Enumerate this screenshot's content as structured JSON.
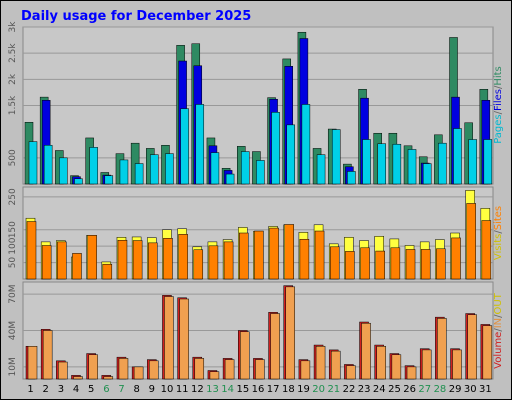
{
  "title": "Daily usage for December 2025",
  "colors": {
    "background": "#c0c0c0",
    "plot": "#c8c8c8",
    "title": "#0000ff",
    "hits": "#2e8a62",
    "files": "#0000e0",
    "pages": "#00d0e8",
    "visits": "#ffff40",
    "sites": "#ff8000",
    "volume": "#d02020",
    "in": "#f0a050",
    "out": "#ffb070",
    "weekend": "#209050",
    "weekday": "#000000"
  },
  "days": [
    "1",
    "2",
    "3",
    "4",
    "5",
    "6",
    "7",
    "8",
    "9",
    "10",
    "11",
    "12",
    "13",
    "14",
    "15",
    "16",
    "17",
    "18",
    "19",
    "20",
    "21",
    "22",
    "23",
    "24",
    "25",
    "26",
    "27",
    "28",
    "29",
    "30",
    "31"
  ],
  "weekend_days": [
    "6",
    "7",
    "13",
    "14",
    "20",
    "21",
    "27",
    "28"
  ],
  "panel_top": {
    "ticks": [
      {
        "label": "500",
        "value": 500
      },
      {
        "label": "1.5k",
        "value": 1500
      },
      {
        "label": "2k",
        "value": 2000
      },
      {
        "label": "2.5k",
        "value": 2500
      },
      {
        "label": "3k",
        "value": 3000
      }
    ],
    "legend": [
      {
        "text": "Pages",
        "color": "#00b8d0"
      },
      {
        "text": "/",
        "color": "#666666"
      },
      {
        "text": "Files",
        "color": "#0000e0"
      },
      {
        "text": "/",
        "color": "#666666"
      },
      {
        "text": "Hits",
        "color": "#2e8a62"
      }
    ]
  },
  "panel_mid": {
    "ticks": [
      {
        "label": "50",
        "value": 50
      },
      {
        "label": "100",
        "value": 100
      },
      {
        "label": "150",
        "value": 150
      },
      {
        "label": "250",
        "value": 250
      }
    ],
    "legend": [
      {
        "text": "Visits",
        "color": "#d0c000"
      },
      {
        "text": "/",
        "color": "#666666"
      },
      {
        "text": "Sites",
        "color": "#ff8000"
      }
    ]
  },
  "panel_bot": {
    "ticks": [
      {
        "label": "10M",
        "value": 10
      },
      {
        "label": "40M",
        "value": 40
      },
      {
        "label": "70M",
        "value": 70
      }
    ],
    "legend": [
      {
        "text": "Volume",
        "color": "#d02020"
      },
      {
        "text": "/",
        "color": "#666666"
      },
      {
        "text": "IN",
        "color": "#e09040"
      },
      {
        "text": "/",
        "color": "#666666"
      },
      {
        "text": "OUT",
        "color": "#d0c000"
      }
    ]
  },
  "chart_data": {
    "type": "bar",
    "title": "Daily usage for December 2025",
    "categories": [
      "1",
      "2",
      "3",
      "4",
      "5",
      "6",
      "7",
      "8",
      "9",
      "10",
      "11",
      "12",
      "13",
      "14",
      "15",
      "16",
      "17",
      "18",
      "19",
      "20",
      "21",
      "22",
      "23",
      "24",
      "25",
      "26",
      "27",
      "28",
      "29",
      "30",
      "31"
    ],
    "panels": [
      {
        "name": "top",
        "ylim": [
          0,
          3000
        ],
        "series": [
          {
            "name": "Hits",
            "values": [
              1180,
              1660,
              640,
              160,
              880,
              220,
              580,
              780,
              680,
              740,
              2650,
              2680,
              880,
              300,
              720,
              620,
              1650,
              2390,
              2900,
              680,
              1050,
              380,
              1810,
              970,
              970,
              730,
              520,
              940,
              2800,
              1170,
              1810
            ]
          },
          {
            "name": "Files",
            "values": [
              0,
              1600,
              0,
              140,
              0,
              170,
              0,
              0,
              0,
              0,
              2350,
              2260,
              730,
              260,
              0,
              0,
              1620,
              2250,
              2780,
              0,
              0,
              330,
              1640,
              0,
              0,
              0,
              400,
              0,
              1660,
              0,
              1600
            ]
          },
          {
            "name": "Pages",
            "values": [
              810,
              740,
              500,
              100,
              700,
              160,
              460,
              390,
              560,
              580,
              1440,
              1520,
              600,
              190,
              620,
              450,
              1370,
              1130,
              1520,
              560,
              1040,
              240,
              850,
              770,
              760,
              660,
              390,
              780,
              1060,
              850,
              850
            ]
          }
        ]
      },
      {
        "name": "middle",
        "ylim": [
          0,
          280
        ],
        "series": [
          {
            "name": "Visits",
            "values": [
              185,
              113,
              117,
              67,
              133,
              52,
              127,
              128,
              126,
              150,
              153,
              98,
              113,
              120,
              157,
              145,
              160,
              165,
              142,
              165,
              107,
              127,
              117,
              130,
              122,
              102,
              113,
              120,
              140,
              270,
              215
            ]
          },
          {
            "name": "Sites",
            "values": [
              175,
              102,
              113,
              78,
              133,
              45,
              118,
              117,
              110,
              124,
              136,
              89,
              101,
              113,
              140,
              146,
              155,
              166,
              121,
              146,
              98,
              84,
              95,
              85,
              95,
              90,
              90,
              92,
              125,
              230,
              178
            ]
          }
        ]
      },
      {
        "name": "bottom",
        "ylim": [
          0,
          80
        ],
        "unit": "M",
        "series": [
          {
            "name": "Volume",
            "values": [
              27,
              41,
              15,
              3,
              21,
              3,
              18,
              10,
              16,
              69,
              67,
              18,
              7,
              17,
              40,
              17,
              55,
              77,
              16,
              28,
              24,
              12,
              47,
              28,
              21,
              11,
              25,
              51,
              25,
              54,
              45
            ]
          },
          {
            "name": "IN",
            "values": [
              27,
              40,
              14,
              2,
              20,
              2,
              17,
              10,
              15,
              68,
              66,
              17,
              6,
              16,
              39,
              16,
              54,
              76,
              15,
              27,
              23,
              11,
              46,
              27,
              20,
              10,
              24,
              50,
              24,
              53,
              44
            ]
          }
        ]
      }
    ]
  }
}
